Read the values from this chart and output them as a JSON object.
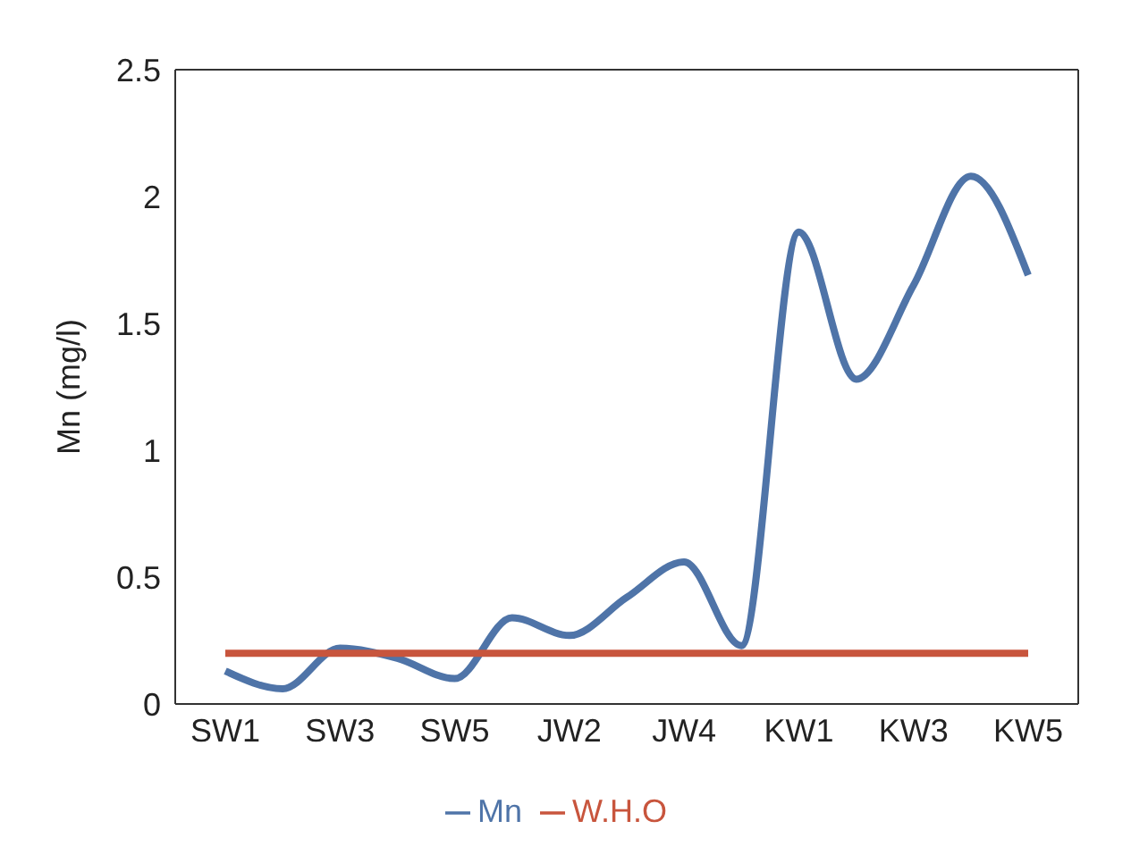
{
  "chart_data": {
    "type": "line",
    "ylabel": "Mn (mg/l)",
    "categories": [
      "SW1",
      null,
      "SW3",
      null,
      "SW5",
      null,
      "JW2",
      null,
      "JW4",
      null,
      "KW1",
      null,
      "KW3",
      null,
      "KW5"
    ],
    "series": [
      {
        "name": "Mn",
        "color": "#4f74a8",
        "values": [
          0.13,
          0.06,
          0.22,
          0.18,
          0.1,
          0.34,
          0.27,
          0.42,
          0.56,
          0.23,
          1.86,
          1.28,
          1.65,
          2.08,
          1.69
        ]
      },
      {
        "name": "W.H.O",
        "color": "#c8553d",
        "values": [
          0.2,
          0.2,
          0.2,
          0.2,
          0.2,
          0.2,
          0.2,
          0.2,
          0.2,
          0.2,
          0.2,
          0.2,
          0.2,
          0.2,
          0.2
        ]
      }
    ],
    "ylim": [
      0,
      2.5
    ],
    "yticks": [
      0,
      0.5,
      1,
      1.5,
      2,
      2.5
    ],
    "grid": false,
    "legend": "bottom",
    "marker": "none",
    "line_style": "solid"
  }
}
